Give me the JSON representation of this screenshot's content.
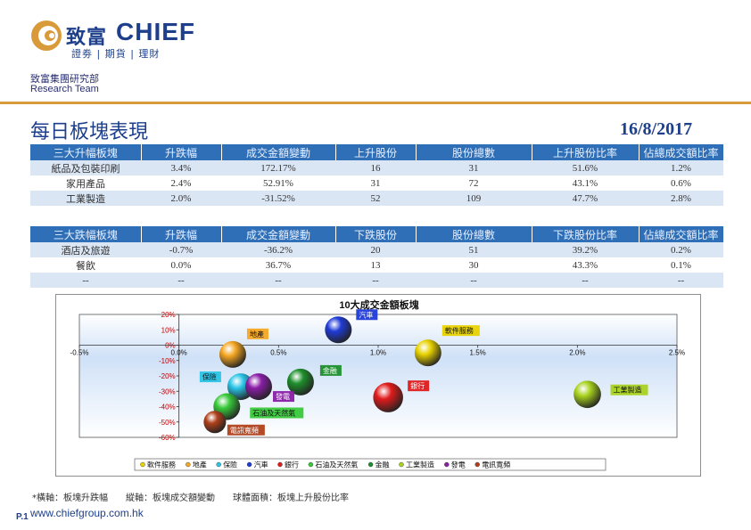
{
  "brand": {
    "name_cn": "致富",
    "name_en": "CHIEF",
    "tagline": "證劵 | 期貨 | 理財",
    "dept_cn": "致富集團研究部",
    "dept_en": "Research Team",
    "accent": "#d99a3a",
    "primary": "#1d3f8c"
  },
  "page": {
    "title": "每日板塊表現",
    "date": "16/8/2017",
    "page_number": "P.1",
    "website": "www.chiefgroup.com.hk",
    "footnote": "*橫軸：板塊升跌幅　　縱軸：板塊成交額變動　　球體面積：板塊上升股份比率"
  },
  "rise_table": {
    "headers": [
      "三大升幅板塊",
      "升跌幅",
      "成交金額變動",
      "上升股份",
      "股份總數",
      "上升股份比率",
      "佔總成交額比率"
    ],
    "rows": [
      [
        "紙品及包裝印刷",
        "3.4%",
        "172.17%",
        "16",
        "31",
        "51.6%",
        "1.2%"
      ],
      [
        "家用產品",
        "2.4%",
        "52.91%",
        "31",
        "72",
        "43.1%",
        "0.6%"
      ],
      [
        "工業製造",
        "2.0%",
        "-31.52%",
        "52",
        "109",
        "47.7%",
        "2.8%"
      ]
    ]
  },
  "fall_table": {
    "headers": [
      "三大跌幅板塊",
      "升跌幅",
      "成交金額變動",
      "下跌股份",
      "股份總數",
      "下跌股份比率",
      "佔總成交額比率"
    ],
    "rows": [
      [
        "酒店及旅遊",
        "-0.7%",
        "-36.2%",
        "20",
        "51",
        "39.2%",
        "0.2%"
      ],
      [
        "餐飲",
        "0.0%",
        "36.7%",
        "13",
        "30",
        "43.3%",
        "0.1%"
      ],
      [
        "--",
        "--",
        "--",
        "--",
        "--",
        "--",
        "--"
      ]
    ]
  },
  "chart_data": {
    "type": "scatter",
    "title": "10大成交金額板塊",
    "xlim": [
      -0.5,
      2.5
    ],
    "ylim": [
      -60,
      20
    ],
    "x_ticks": [
      "-0.5%",
      "0.0%",
      "0.5%",
      "1.0%",
      "1.5%",
      "2.0%",
      "2.5%"
    ],
    "y_ticks": [
      "20%",
      "10%",
      "0%",
      "-10%",
      "-20%",
      "-30%",
      "-40%",
      "-50%",
      "-60%"
    ],
    "legend_position": "bottom",
    "series": [
      {
        "name": "軟件服務",
        "x": 1.25,
        "y": -5,
        "size": 1.0,
        "color": "#e8d200"
      },
      {
        "name": "地產",
        "x": 0.27,
        "y": -6,
        "size": 1.0,
        "color": "#f5a623"
      },
      {
        "name": "保險",
        "x": 0.31,
        "y": -27,
        "size": 1.0,
        "color": "#29c4e6"
      },
      {
        "name": "汽車",
        "x": 0.8,
        "y": 10,
        "size": 1.0,
        "color": "#1f3bd6"
      },
      {
        "name": "銀行",
        "x": 1.05,
        "y": -34,
        "size": 1.25,
        "color": "#e01b1b"
      },
      {
        "name": "石油及天然氣",
        "x": 0.24,
        "y": -40,
        "size": 1.0,
        "color": "#38c93a"
      },
      {
        "name": "金融",
        "x": 0.61,
        "y": -24,
        "size": 1.0,
        "color": "#1e8f2c"
      },
      {
        "name": "工業製造",
        "x": 2.05,
        "y": -32,
        "size": 1.05,
        "color": "#a8d21e"
      },
      {
        "name": "發電",
        "x": 0.4,
        "y": -27,
        "size": 1.0,
        "color": "#8a1ea8"
      },
      {
        "name": "電訊寬頻",
        "x": 0.18,
        "y": -50,
        "size": 0.7,
        "color": "#b0401a"
      }
    ]
  }
}
